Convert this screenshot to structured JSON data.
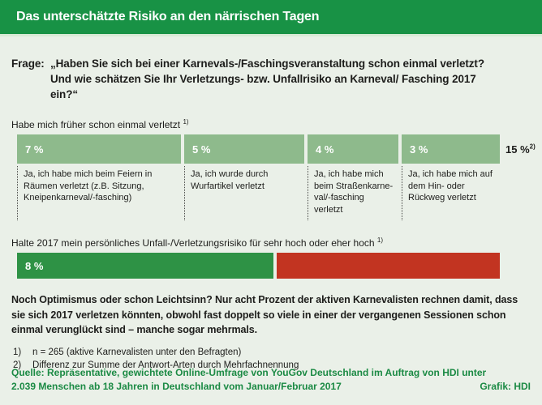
{
  "colors": {
    "header_green": "#189245",
    "light_green_bar": "#8eba8c",
    "dark_green_bar": "#2e9245",
    "red_bar": "#c23421",
    "background": "#eaf0e8",
    "source_text_green": "#1b8a44",
    "text": "#1d1d1b"
  },
  "header": {
    "title": "Das unterschätzte Risiko an den närrischen Tagen"
  },
  "question": {
    "label": "Frage:",
    "text": "„Haben Sie sich bei einer Karnevals-/Faschingsveranstaltung schon einmal verletzt? Und wie schätzen Sie Ihr Verletzungs- bzw. Unfallrisiko an Karneval/ Fasching 2017 ein?“"
  },
  "chart1": {
    "label": "Habe mich früher schon einmal verletzt",
    "footnote_ref": "1)",
    "total_value": "15 %",
    "total_ref": "2)",
    "segments": [
      {
        "value": "7 %",
        "desc": "Ja, ich habe mich beim Feiern in Räumen verletzt (z.B. Sitzung, Kneipenkarneval/-fasching)"
      },
      {
        "value": "5 %",
        "desc": "Ja, ich wurde durch Wurfartikel verletzt"
      },
      {
        "value": "4 %",
        "desc": "Ja, ich habe mich beim Straßenkarne- val/-fasching verletzt"
      },
      {
        "value": "3 %",
        "desc": "Ja, ich habe mich auf dem Hin- oder Rückweg verletzt"
      }
    ]
  },
  "chart2": {
    "label": "Halte 2017 mein persönliches Unfall-/Verletzungsrisiko für sehr hoch oder eher hoch",
    "footnote_ref": "1)",
    "value": "8 %"
  },
  "summary": "Noch Optimismus oder schon Leichtsinn? Nur acht Prozent der aktiven Karnevalisten rechnen damit, dass sie sich 2017 verletzen könnten, obwohl fast doppelt so viele in einer der vergangenen Sessionen schon einmal verunglückt sind – manche sogar mehrmals.",
  "footnotes": [
    {
      "num": "1)",
      "text": "n = 265 (aktive Karnevalisten unter den Befragten)"
    },
    {
      "num": "2)",
      "text": "Differenz zur Summe der Antwort-Arten durch Mehrfachnennung"
    }
  ],
  "source": {
    "line1": "Quelle: Repräsentative, gewichtete Online-Umfrage von YouGov Deutschland im Auftrag von HDI unter",
    "line2": "2.039 Menschen ab 18 Jahren in Deutschland vom Januar/Februar 2017",
    "credit": "Grafik: HDI"
  },
  "chart_data": [
    {
      "type": "bar",
      "title": "Habe mich früher schon einmal verletzt",
      "categories": [
        "Ja, ich habe mich beim Feiern in Räumen verletzt (z.B. Sitzung, Kneipenkarneval/-fasching)",
        "Ja, ich wurde durch Wurfartikel verletzt",
        "Ja, ich habe mich beim Straßenkarneval/-fasching verletzt",
        "Ja, ich habe mich auf dem Hin- oder Rückweg verletzt"
      ],
      "values": [
        7,
        5,
        4,
        3
      ],
      "unit": "%",
      "total": 15,
      "total_note": "Differenz zur Summe der Antwort-Arten durch Mehrfachnennung",
      "orientation": "horizontal-stacked",
      "bar_color": "#8eba8c"
    },
    {
      "type": "bar",
      "title": "Halte 2017 mein persönliches Unfall-/Verletzungsrisiko für sehr hoch oder eher hoch",
      "categories": [
        "sehr hoch oder eher hoch"
      ],
      "values": [
        8
      ],
      "unit": "%",
      "orientation": "horizontal",
      "bar_color": "#2e9245",
      "remainder_color": "#c23421"
    }
  ]
}
